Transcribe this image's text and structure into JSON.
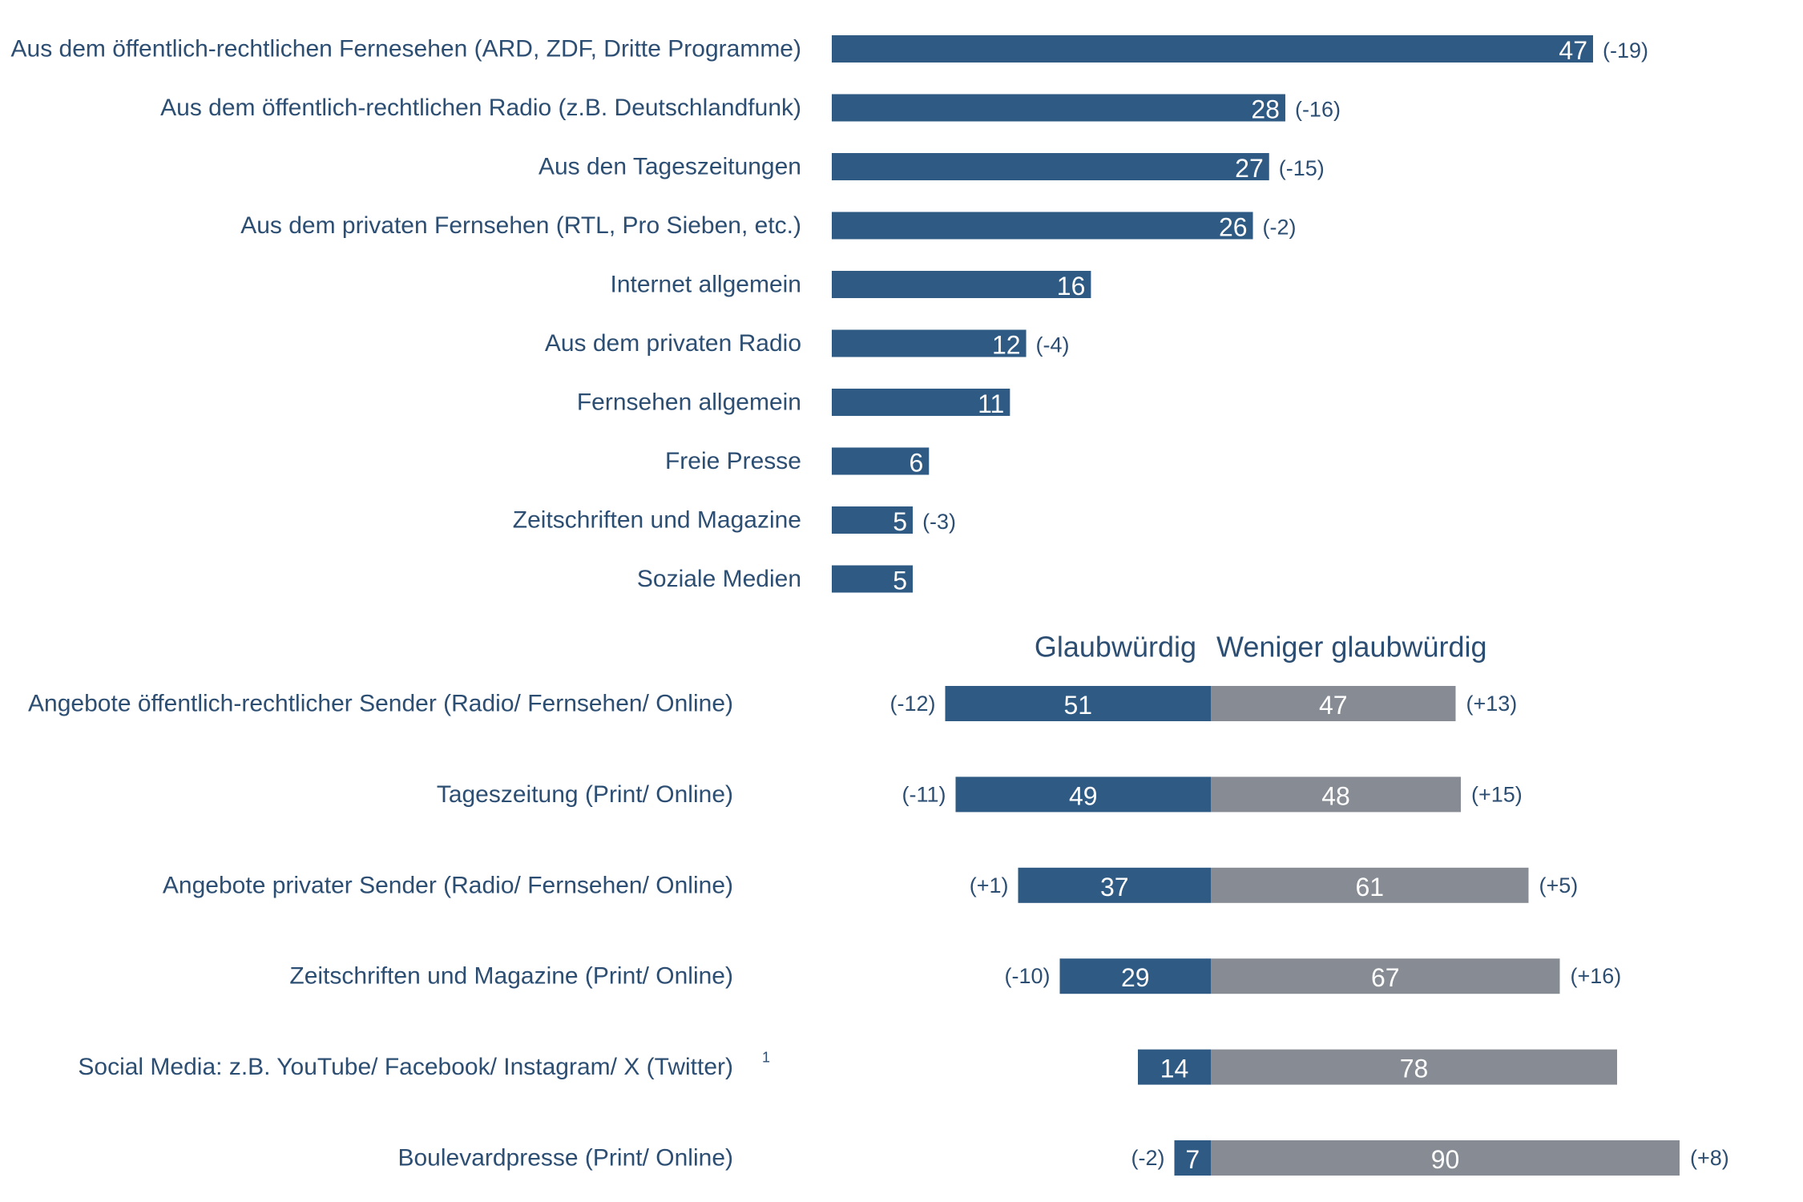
{
  "colors": {
    "primary": "#2e5a83",
    "secondary": "#878c94",
    "text": "#2d4e73",
    "value_text": "#ffffff"
  },
  "chart_data": [
    {
      "type": "bar",
      "orientation": "horizontal",
      "title": "",
      "xlim": [
        0,
        47
      ],
      "categories": [
        "Aus dem öffentlich-rechtlichen Fernesehen (ARD, ZDF, Dritte Programme)",
        "Aus dem öffentlich-rechtlichen Radio (z.B. Deutschlandfunk)",
        "Aus den Tageszeitungen",
        "Aus dem privaten Fernsehen (RTL, Pro Sieben, etc.)",
        "Internet allgemein",
        "Aus dem privaten Radio",
        "Fernsehen allgemein",
        "Freie Presse",
        "Zeitschriften und Magazine",
        "Soziale Medien"
      ],
      "values": [
        47,
        28,
        27,
        26,
        16,
        12,
        11,
        6,
        5,
        5
      ],
      "changes": [
        "(-19)",
        "(-16)",
        "(-15)",
        "(-2)",
        "",
        "(-4)",
        "",
        "",
        "(-3)",
        ""
      ]
    },
    {
      "type": "bar",
      "orientation": "horizontal-diverging",
      "headers": {
        "left": "Glaubwürdig",
        "right": "Weniger glaubwürdig"
      },
      "categories": [
        "Angebote öffentlich-rechtlicher Sender (Radio/ Fernsehen/ Online)",
        "Tageszeitung (Print/ Online)",
        "Angebote privater Sender (Radio/ Fernsehen/ Online)",
        "Zeitschriften und Magazine (Print/ Online)",
        "Social Media: z.B. YouTube/ Facebook/ Instagram/ X (Twitter)",
        "Boulevardpresse (Print/ Online)"
      ],
      "footnotes": [
        "",
        "",
        "",
        "",
        "1",
        ""
      ],
      "series": [
        {
          "name": "Glaubwürdig",
          "values": [
            51,
            49,
            37,
            29,
            14,
            7
          ],
          "changes": [
            "(-12)",
            "(-11)",
            "(+1)",
            "(-10)",
            "",
            "(-2)"
          ]
        },
        {
          "name": "Weniger glaubwürdig",
          "values": [
            47,
            48,
            61,
            67,
            78,
            90
          ],
          "changes": [
            "(+13)",
            "(+15)",
            "(+5)",
            "(+16)",
            "",
            "(+8)"
          ]
        }
      ]
    }
  ]
}
